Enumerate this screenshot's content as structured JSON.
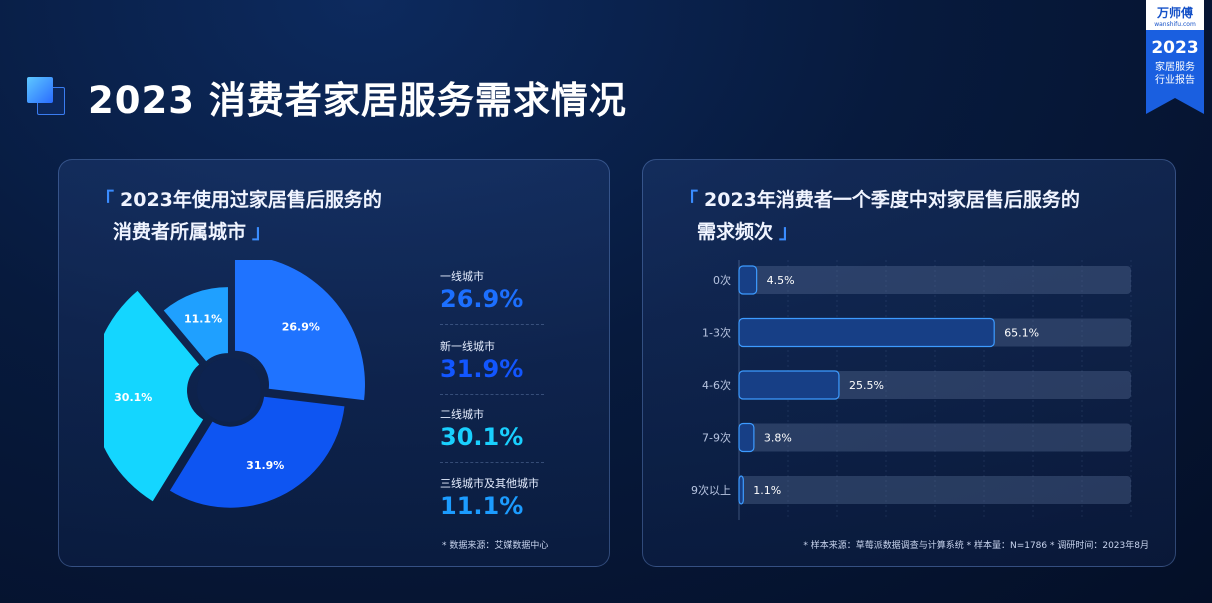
{
  "header": {
    "title": "2023 消费者家居服务需求情况"
  },
  "badge": {
    "logo": "万师傅",
    "site": "wanshifu.com",
    "year": "2023",
    "line1": "家居服务",
    "line2": "行业报告"
  },
  "left_panel": {
    "title_line1": "2023年使用过家居售后服务的",
    "title_line2": "消费者所属城市",
    "source": "* 数据来源：艾媒数据中心",
    "legend": [
      {
        "label": "一线城市",
        "value": "26.9%",
        "color": "#1c6fff"
      },
      {
        "label": "新一线城市",
        "value": "31.9%",
        "color": "#1256ff"
      },
      {
        "label": "二线城市",
        "value": "30.1%",
        "color": "#19d0ff"
      },
      {
        "label": "三线城市及其他城市",
        "value": "11.1%",
        "color": "#1c9cff"
      }
    ]
  },
  "right_panel": {
    "title_line1": "2023年消费者一个季度中对家居售后服务的",
    "title_line2": "需求频次",
    "source": "* 样本来源：草莓派数据调查与计算系统  * 样本量：N=1786  * 调研时间：2023年8月"
  },
  "chart_data": [
    {
      "type": "pie",
      "categories": [
        "一线城市",
        "新一线城市",
        "二线城市",
        "三线城市及其他城市"
      ],
      "values": [
        26.9,
        31.9,
        30.1,
        11.1
      ],
      "labels": [
        "26.9%",
        "31.9%",
        "30.1%",
        "11.1%"
      ],
      "colors": [
        "#1f73ff",
        "#0e55f2",
        "#14d6ff",
        "#1fa0ff"
      ]
    },
    {
      "type": "bar",
      "orientation": "horizontal",
      "categories": [
        "0次",
        "1-3次",
        "4-6次",
        "7-9次",
        "9次以上"
      ],
      "values": [
        4.5,
        65.1,
        25.5,
        3.8,
        1.1
      ],
      "labels": [
        "4.5%",
        "65.1%",
        "25.5%",
        "3.8%",
        "1.1%"
      ]
    }
  ]
}
